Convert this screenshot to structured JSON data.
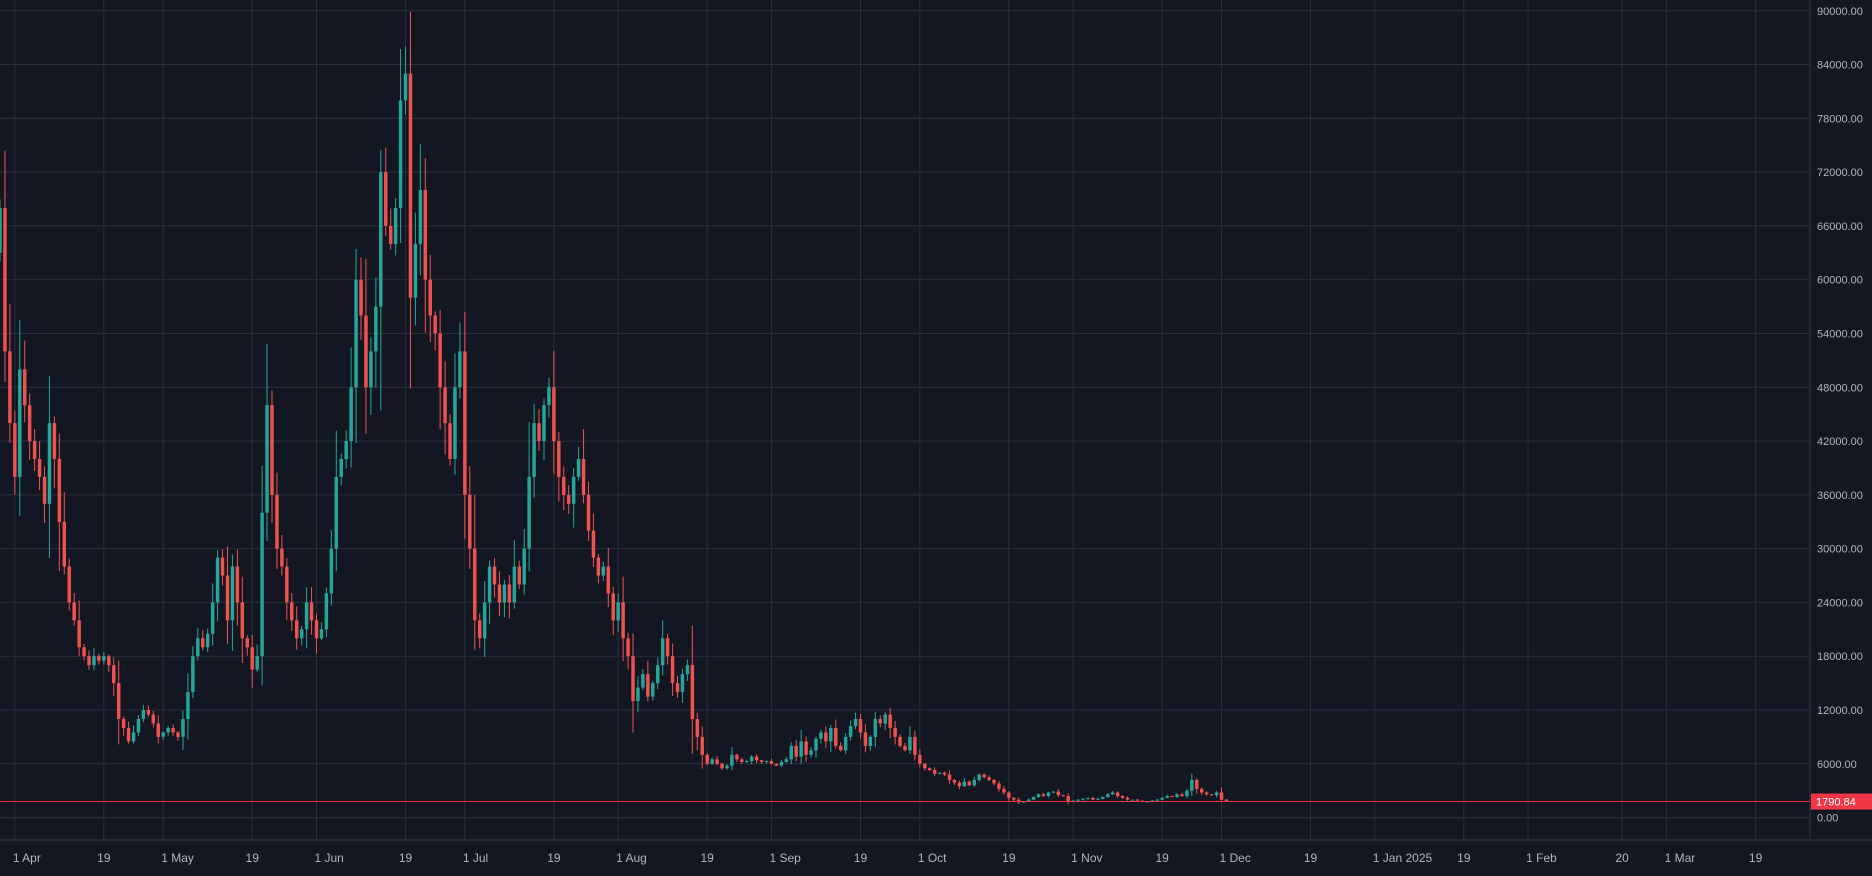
{
  "chart_data": {
    "type": "candlestick",
    "y_axis": {
      "side": "right",
      "ticks": [
        "90000.00",
        "84000.00",
        "78000.00",
        "72000.00",
        "66000.00",
        "60000.00",
        "54000.00",
        "48000.00",
        "42000.00",
        "36000.00",
        "30000.00",
        "24000.00",
        "18000.00",
        "12000.00",
        "6000.00",
        "0.00"
      ],
      "tick_values": [
        90000,
        84000,
        78000,
        72000,
        66000,
        60000,
        54000,
        48000,
        42000,
        36000,
        30000,
        24000,
        18000,
        12000,
        6000,
        0
      ],
      "range": [
        -2500,
        91200
      ]
    },
    "x_axis": {
      "range": [
        "2024-03-29",
        "2025-03-30"
      ],
      "ticks": [
        {
          "date": "2024-04-01",
          "label": "1 Apr"
        },
        {
          "date": "2024-04-19",
          "label": "19"
        },
        {
          "date": "2024-05-01",
          "label": "1 May"
        },
        {
          "date": "2024-05-19",
          "label": "19"
        },
        {
          "date": "2024-06-01",
          "label": "1 Jun"
        },
        {
          "date": "2024-06-19",
          "label": "19"
        },
        {
          "date": "2024-07-01",
          "label": "1 Jul"
        },
        {
          "date": "2024-07-19",
          "label": "19"
        },
        {
          "date": "2024-08-01",
          "label": "1 Aug"
        },
        {
          "date": "2024-08-19",
          "label": "19"
        },
        {
          "date": "2024-09-01",
          "label": "1 Sep"
        },
        {
          "date": "2024-09-19",
          "label": "19"
        },
        {
          "date": "2024-10-01",
          "label": "1 Oct"
        },
        {
          "date": "2024-10-19",
          "label": "19"
        },
        {
          "date": "2024-11-01",
          "label": "1 Nov"
        },
        {
          "date": "2024-11-19",
          "label": "19"
        },
        {
          "date": "2024-12-01",
          "label": "1 Dec"
        },
        {
          "date": "2024-12-19",
          "label": "19"
        },
        {
          "date": "2025-01-01",
          "label": "1 Jan 2025"
        },
        {
          "date": "2025-01-19",
          "label": "19"
        },
        {
          "date": "2025-02-01",
          "label": "1 Feb"
        },
        {
          "date": "2025-02-20",
          "label": "20"
        },
        {
          "date": "2025-03-01",
          "label": "1 Mar"
        },
        {
          "date": "2025-03-19",
          "label": "19"
        }
      ]
    },
    "current_price": {
      "value": 1790.84,
      "label": "1790.84",
      "color": "#f23645"
    },
    "colors": {
      "background": "#131722",
      "grid": "#2a2e39",
      "up": "#26a69a",
      "down": "#ef5350",
      "axis_text": "#b2b5be",
      "border": "#363a45"
    },
    "grid": true,
    "close_series": {
      "start_date": "2024-03-29",
      "start_open": 63000,
      "closes": [
        68000,
        52000,
        44000,
        38000,
        50000,
        46000,
        42000,
        40000,
        38000,
        35000,
        44000,
        40000,
        33000,
        28000,
        24000,
        22000,
        19000,
        18000,
        17000,
        18000,
        17500,
        18000,
        17000,
        15000,
        11000,
        10000,
        8500,
        9500,
        11000,
        12000,
        11500,
        10500,
        9000,
        9500,
        10000,
        9500,
        9000,
        11000,
        14000,
        18000,
        20000,
        19000,
        20500,
        24000,
        29000,
        27000,
        22000,
        28000,
        24000,
        20000,
        19000,
        16500,
        18000,
        34000,
        46000,
        36000,
        30000,
        28000,
        24000,
        22000,
        20000,
        21000,
        24000,
        22000,
        20000,
        21000,
        25000,
        30000,
        38000,
        40000,
        42000,
        48000,
        60000,
        56000,
        48000,
        52000,
        57000,
        72000,
        66000,
        64000,
        68000,
        80000,
        83000,
        58000,
        64000,
        70000,
        60000,
        56000,
        54000,
        48000,
        44000,
        40000,
        48000,
        52000,
        36000,
        30000,
        22000,
        20000,
        24000,
        28000,
        26000,
        24000,
        26000,
        24000,
        28000,
        26000,
        30000,
        38000,
        44000,
        42000,
        46000,
        48000,
        42000,
        38000,
        36000,
        35000,
        38000,
        40000,
        36000,
        32000,
        29000,
        27000,
        28000,
        25000,
        22000,
        24000,
        20000,
        18000,
        13000,
        14500,
        16000,
        13500,
        15000,
        17000,
        20000,
        18000,
        15000,
        14000,
        16000,
        17000,
        11000,
        9000,
        7000,
        6000,
        6500,
        6000,
        5500,
        5800,
        7000,
        6500,
        6200,
        6300,
        6800,
        6400,
        6200,
        6300,
        6000,
        5800,
        6200,
        6500,
        8000,
        6800,
        8500,
        7000,
        7500,
        8800,
        9500,
        8500,
        10000,
        8000,
        7500,
        9000,
        10200,
        11000,
        9500,
        8000,
        9000,
        11000,
        10500,
        11500,
        10000,
        9000,
        8000,
        7500,
        9000,
        7000,
        6000,
        5500,
        5300,
        4900,
        5000,
        4800,
        4200,
        3900,
        3500,
        4000,
        3600,
        4200,
        4800,
        4500,
        4200,
        3800,
        3200,
        2800,
        2200,
        2000,
        1700,
        1800,
        2000,
        2300,
        2600,
        2400,
        2800,
        2900,
        2500,
        2400,
        1800,
        1900,
        2000,
        2100,
        2200,
        2000,
        2100,
        2300,
        2600,
        2800,
        2400,
        2200,
        2000,
        2000,
        1900,
        1800,
        1800,
        1900,
        2000,
        2200,
        2400,
        2300,
        2600,
        2400,
        3000,
        4200,
        3200,
        2800,
        2600,
        2500,
        2800,
        2000,
        1790.84
      ]
    }
  }
}
